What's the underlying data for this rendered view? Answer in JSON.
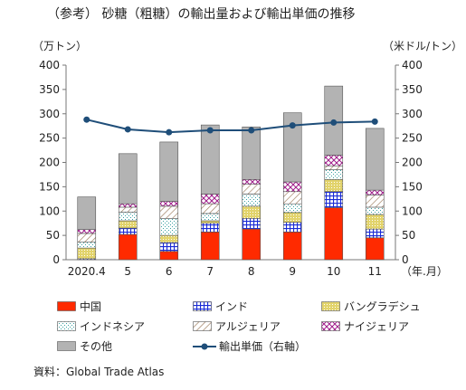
{
  "title": "（参考） 砂糖（粗糖）の輸出量および輸出単価の推移",
  "left_unit": "（万トン）",
  "right_unit": "（米ドル/トン）",
  "source": "資料：Global Trade Atlas",
  "colors": {
    "china": "#ff2a00",
    "india": "#1a2bd6",
    "bangladesh": "#e2d36b",
    "indonesia": "#3aa0a0",
    "algeria": "#9b7a5a",
    "nigeria": "#a01c8a",
    "other": "#b3b3b3",
    "price": "#1f4e79"
  },
  "legend": [
    {
      "key": "china",
      "label": "中国"
    },
    {
      "key": "india",
      "label": "インド"
    },
    {
      "key": "bangladesh",
      "label": "バングラデシュ"
    },
    {
      "key": "indonesia",
      "label": "インドネシア"
    },
    {
      "key": "algeria",
      "label": "アルジェリア"
    },
    {
      "key": "nigeria",
      "label": "ナイジェリア"
    },
    {
      "key": "other",
      "label": "その他"
    },
    {
      "key": "price",
      "label": "輸出単価（右軸）"
    }
  ],
  "chart_data": {
    "type": "bar",
    "stacked": true,
    "categories": [
      "2020.4",
      "5",
      "6",
      "7",
      "8",
      "9",
      "10",
      "11"
    ],
    "x_unit_label": "（年.月）",
    "ylim_left": [
      0,
      400
    ],
    "ylim_right": [
      0,
      400
    ],
    "yticks_left": [
      "0",
      "50",
      "100",
      "150",
      "200",
      "250",
      "300",
      "350",
      "400"
    ],
    "yticks_right": [
      "0",
      "50",
      "100",
      "150",
      "200",
      "250",
      "300",
      "350",
      "400"
    ],
    "grid": false,
    "legend_position": "bottom",
    "series": [
      {
        "key": "china",
        "name": "中国",
        "values": [
          0,
          52,
          17,
          57,
          63,
          57,
          107,
          45
        ]
      },
      {
        "key": "india",
        "name": "インド",
        "values": [
          2,
          13,
          18,
          18,
          22,
          20,
          33,
          18
        ]
      },
      {
        "key": "bangladesh",
        "name": "バングラデシュ",
        "values": [
          22,
          15,
          15,
          5,
          25,
          20,
          25,
          30
        ]
      },
      {
        "key": "indonesia",
        "name": "インドネシア",
        "values": [
          12,
          18,
          35,
          15,
          25,
          18,
          20,
          15
        ]
      },
      {
        "key": "algeria",
        "name": "アルジェリア",
        "values": [
          18,
          10,
          25,
          20,
          20,
          25,
          8,
          25
        ]
      },
      {
        "key": "nigeria",
        "name": "ナイジェリア",
        "values": [
          8,
          7,
          10,
          20,
          10,
          20,
          22,
          10
        ]
      },
      {
        "key": "other",
        "name": "その他",
        "values": [
          67,
          103,
          122,
          142,
          108,
          142,
          142,
          127
        ]
      }
    ],
    "line_series": {
      "key": "price",
      "name": "輸出単価（右軸）",
      "axis": "right",
      "values": [
        288,
        268,
        262,
        266,
        266,
        276,
        282,
        284
      ]
    }
  }
}
